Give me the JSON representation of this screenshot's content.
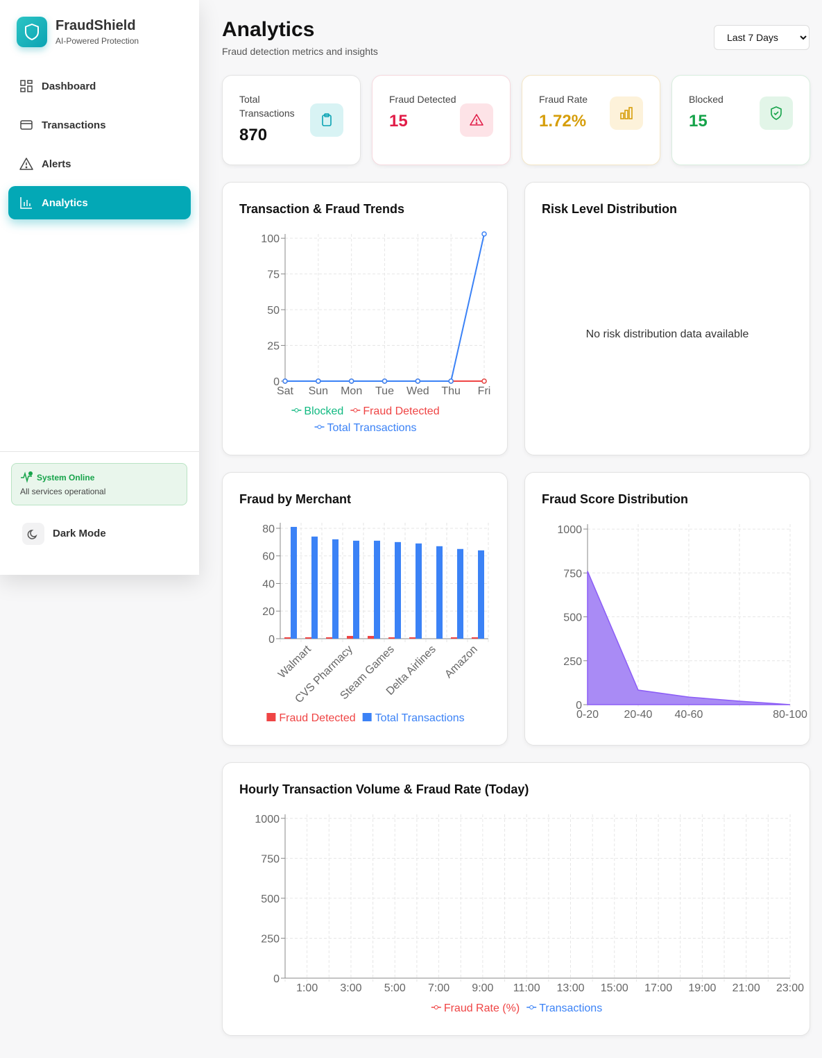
{
  "sidebar": {
    "brand": {
      "name": "FraudShield",
      "tagline": "AI-Powered Protection"
    },
    "nav": [
      "Dashboard",
      "Transactions",
      "Alerts",
      "Analytics"
    ],
    "status": {
      "title": "System Online",
      "subtitle": "All services operational"
    },
    "dark_mode": "Dark Mode"
  },
  "header": {
    "title": "Analytics",
    "subtitle": "Fraud detection metrics and insights",
    "range": "Last 7 Days"
  },
  "stats": [
    {
      "label": "Total Transactions",
      "value": 870
    },
    {
      "label": "Fraud Detected",
      "value": 15
    },
    {
      "label": "Fraud Rate",
      "value": "1.72%"
    },
    {
      "label": "Blocked",
      "value": 15
    }
  ],
  "charts": [
    {
      "type": "line",
      "title": "Transaction & Fraud Trends",
      "categories": [
        "Sat",
        "Sun",
        "Mon",
        "Tue",
        "Wed",
        "Thu",
        "Fri"
      ],
      "series": [
        {
          "name": "Blocked",
          "color": "#10b981",
          "values": [
            0,
            0,
            0,
            0,
            0,
            0,
            0
          ]
        },
        {
          "name": "Fraud Detected",
          "color": "#ef4444",
          "values": [
            0,
            0,
            0,
            0,
            0,
            0,
            0
          ]
        },
        {
          "name": "Total Transactions",
          "color": "#3b82f6",
          "values": [
            0,
            0,
            0,
            0,
            0,
            0,
            103
          ]
        }
      ],
      "ylim": [
        0,
        103
      ],
      "yticks": [
        0,
        25,
        50,
        75,
        100
      ],
      "grid": true
    },
    {
      "title": "Risk Level Distribution",
      "message": "No risk distribution data available"
    },
    {
      "type": "bar",
      "title": "Fraud by Merchant",
      "categories": [
        null,
        "Walmart",
        null,
        "CVS Pharmacy",
        null,
        "Steam Games",
        null,
        "Delta Airlines",
        null,
        "Amazon"
      ],
      "series": [
        {
          "name": "Fraud Detected",
          "color": "#ef4444",
          "values": [
            1,
            1,
            1,
            2,
            2,
            1,
            1,
            0,
            1,
            1
          ]
        },
        {
          "name": "Total Transactions",
          "color": "#3b82f6",
          "values": [
            81,
            74,
            72,
            71,
            71,
            70,
            69,
            67,
            65,
            64
          ]
        }
      ],
      "ylim": [
        0,
        84
      ],
      "yticks": [
        0,
        20,
        40,
        60,
        80
      ],
      "grid": true
    },
    {
      "type": "area",
      "title": "Fraud Score Distribution",
      "categories": [
        "0-20",
        "20-40",
        "40-60",
        null,
        "80-100"
      ],
      "values": [
        760,
        83,
        43,
        20,
        0
      ],
      "color": "#8b5cf6",
      "ylim": [
        0,
        1028
      ],
      "yticks": [
        0,
        250,
        500,
        750,
        1000
      ],
      "grid": true
    },
    {
      "type": "line",
      "title": "Hourly Transaction Volume & Fraud Rate (Today)",
      "categories": [
        null,
        "1:00",
        null,
        "3:00",
        null,
        "5:00",
        null,
        "7:00",
        null,
        "9:00",
        null,
        "11:00",
        null,
        "13:00",
        null,
        "15:00",
        null,
        "17:00",
        null,
        "19:00",
        null,
        "21:00",
        null,
        "23:00"
      ],
      "series": [
        {
          "name": "Fraud Rate (%)",
          "color": "#ef4444",
          "values": [
            null,
            null,
            null,
            null,
            null,
            null,
            null,
            null,
            null,
            null,
            null,
            null,
            null,
            null,
            null,
            null,
            null,
            null,
            null,
            null,
            null,
            null,
            null,
            null
          ]
        },
        {
          "name": "Transactions",
          "color": "#3b82f6",
          "values": [
            null,
            null,
            null,
            null,
            null,
            null,
            null,
            null,
            null,
            null,
            null,
            null,
            null,
            null,
            null,
            null,
            null,
            null,
            null,
            null,
            null,
            null,
            null,
            null
          ]
        }
      ],
      "ylim": [
        0,
        1025
      ],
      "yticks": [
        0,
        250,
        500,
        750,
        1000
      ],
      "grid": true
    }
  ]
}
